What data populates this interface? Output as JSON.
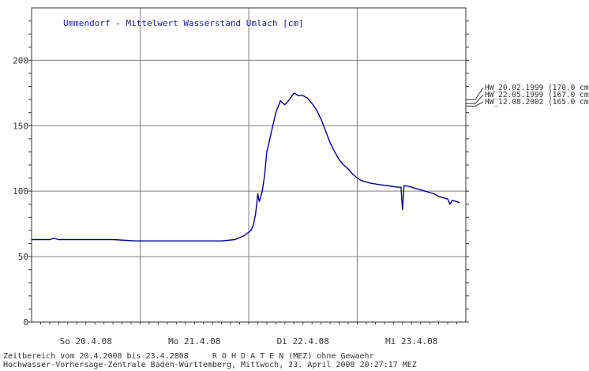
{
  "chart_data": {
    "type": "line",
    "title": "Ummendorf - Mittelwert Wasserstand Umlach [cm]",
    "xlabel": "",
    "ylabel": "",
    "x_start": "2008-04-20 00:00",
    "x_end": "2008-04-24 00:00",
    "x_tick_labels": [
      "So 20.4.08",
      "Mo 21.4.08",
      "Di 22.4.08",
      "Mi 23.4.08"
    ],
    "ylim": [
      0,
      240
    ],
    "y_ticks": [
      0,
      50,
      100,
      150,
      200
    ],
    "grid": true,
    "series": [
      {
        "color": "#00008b",
        "points": [
          [
            "2008-04-20 00:00",
            63
          ],
          [
            "2008-04-20 04:00",
            63
          ],
          [
            "2008-04-20 05:00",
            64
          ],
          [
            "2008-04-20 06:00",
            63
          ],
          [
            "2008-04-20 12:00",
            63
          ],
          [
            "2008-04-20 18:00",
            63
          ],
          [
            "2008-04-20 23:00",
            62
          ],
          [
            "2008-04-21 06:00",
            62
          ],
          [
            "2008-04-21 12:00",
            62
          ],
          [
            "2008-04-21 18:00",
            62
          ],
          [
            "2008-04-21 21:00",
            63
          ],
          [
            "2008-04-21 23:00",
            66
          ],
          [
            "2008-04-22 00:30",
            70
          ],
          [
            "2008-04-22 01:00",
            74
          ],
          [
            "2008-04-22 01:30",
            82
          ],
          [
            "2008-04-22 02:00",
            98
          ],
          [
            "2008-04-22 02:20",
            92
          ],
          [
            "2008-04-22 03:00",
            100
          ],
          [
            "2008-04-22 03:30",
            112
          ],
          [
            "2008-04-22 04:00",
            130
          ],
          [
            "2008-04-22 04:30",
            137
          ],
          [
            "2008-04-22 05:00",
            145
          ],
          [
            "2008-04-22 06:00",
            160
          ],
          [
            "2008-04-22 07:00",
            169
          ],
          [
            "2008-04-22 08:00",
            166
          ],
          [
            "2008-04-22 09:00",
            170
          ],
          [
            "2008-04-22 10:00",
            175
          ],
          [
            "2008-04-22 11:00",
            173
          ],
          [
            "2008-04-22 12:00",
            173
          ],
          [
            "2008-04-22 13:00",
            171
          ],
          [
            "2008-04-22 14:00",
            167
          ],
          [
            "2008-04-22 15:00",
            162
          ],
          [
            "2008-04-22 16:00",
            155
          ],
          [
            "2008-04-22 17:00",
            146
          ],
          [
            "2008-04-22 18:00",
            137
          ],
          [
            "2008-04-22 19:00",
            130
          ],
          [
            "2008-04-22 20:00",
            124
          ],
          [
            "2008-04-22 21:00",
            120
          ],
          [
            "2008-04-22 22:00",
            117
          ],
          [
            "2008-04-22 23:00",
            113
          ],
          [
            "2008-04-23 00:00",
            110
          ],
          [
            "2008-04-23 01:00",
            108
          ],
          [
            "2008-04-23 03:00",
            106
          ],
          [
            "2008-04-23 05:00",
            105
          ],
          [
            "2008-04-23 07:00",
            104
          ],
          [
            "2008-04-23 09:00",
            103
          ],
          [
            "2008-04-23 09:40",
            103
          ],
          [
            "2008-04-23 10:00",
            86
          ],
          [
            "2008-04-23 10:20",
            104
          ],
          [
            "2008-04-23 11:00",
            104
          ],
          [
            "2008-04-23 13:00",
            102
          ],
          [
            "2008-04-23 15:00",
            100
          ],
          [
            "2008-04-23 17:00",
            98
          ],
          [
            "2008-04-23 18:00",
            96
          ],
          [
            "2008-04-23 19:00",
            95
          ],
          [
            "2008-04-23 20:00",
            94
          ],
          [
            "2008-04-23 20:30",
            90
          ],
          [
            "2008-04-23 21:00",
            93
          ],
          [
            "2008-04-23 22:00",
            92
          ],
          [
            "2008-04-23 22:40",
            91
          ]
        ]
      }
    ],
    "annotations": [
      {
        "text": "HW_20.02.1999 (170.0 cm)",
        "value": 170.0
      },
      {
        "text": "HW_22.05.1999 (167.0 cm)",
        "value": 167.0
      },
      {
        "text": "HW_12.08.2002 (165.0 cm)",
        "value": 165.0
      }
    ]
  },
  "footer": {
    "line1": "Zeitbereich vom 20.4.2008 bis 23.4.2008     R O H D A T E N (MEZ) ohne Gewaehr",
    "line2": "Hochwasser-Vorhersage-Zentrale Baden-Württemberg, Mittwoch, 23. April 2008 20:27:17 MEZ"
  },
  "colors": {
    "line": "#00008b",
    "grid": "#808080",
    "axis": "#333333",
    "text": "#333333"
  }
}
